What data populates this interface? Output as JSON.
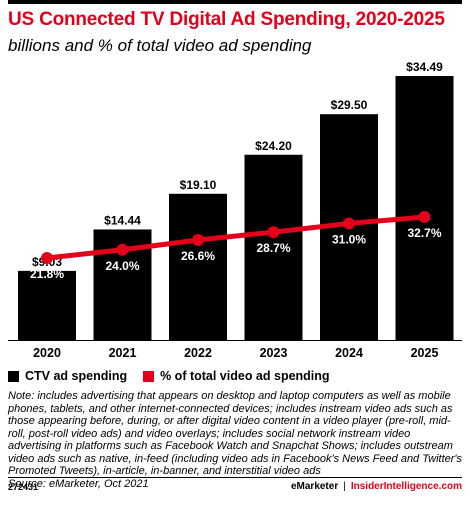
{
  "header": {
    "title": "US Connected TV Digital Ad Spending, 2020-2025",
    "subtitle": "billions and % of total video ad spending"
  },
  "legend": {
    "bars_label": "CTV ad spending",
    "line_label": "% of total video ad spending"
  },
  "note": {
    "text": "Note: includes advertising that appears on desktop and laptop computers as well as mobile phones, tablets, and other internet-connected devices; includes instream video ads such as those appearing before, during, or after digital video content in a video player (pre-roll, mid-roll, post-roll video ads) and video overlays; includes social network instream video advertising in platforms such as Facebook Watch and Snapchat Shows; includes outstream video ads such as native, in-feed (including video ads in Facebook's News Feed and Twitter's Promoted Tweets), in-article, in-banner, and interstitial video ads",
    "source": "Source: eMarketer, Oct 2021"
  },
  "footer": {
    "chart_id": "272431",
    "brand_left": "eMarketer",
    "separator": "|",
    "brand_right": "InsiderIntelligence.com"
  },
  "colors": {
    "title": "#e4001b",
    "bars": "#000000",
    "line": "#e4001b"
  },
  "chart_data": {
    "type": "bar",
    "title": "US Connected TV Digital Ad Spending, 2020-2025",
    "subtitle": "billions and % of total video ad spending",
    "categories": [
      "2020",
      "2021",
      "2022",
      "2023",
      "2024",
      "2025"
    ],
    "series": [
      {
        "name": "CTV ad spending",
        "type": "bar",
        "values": [
          9.03,
          14.44,
          19.1,
          24.2,
          29.5,
          34.49
        ],
        "labels": [
          "$9.03",
          "$14.44",
          "$19.10",
          "$24.20",
          "$29.50",
          "$34.49"
        ]
      },
      {
        "name": "% of total video ad spending",
        "type": "line",
        "values": [
          21.8,
          24.0,
          26.6,
          28.7,
          31.0,
          32.7
        ],
        "labels": [
          "21.8%",
          "24.0%",
          "26.6%",
          "28.7%",
          "31.0%",
          "32.7%"
        ]
      }
    ],
    "ylim": [
      0,
      34.49
    ],
    "line_ylim": [
      0,
      50
    ],
    "grid": false,
    "legend_position": "bottom-left"
  }
}
